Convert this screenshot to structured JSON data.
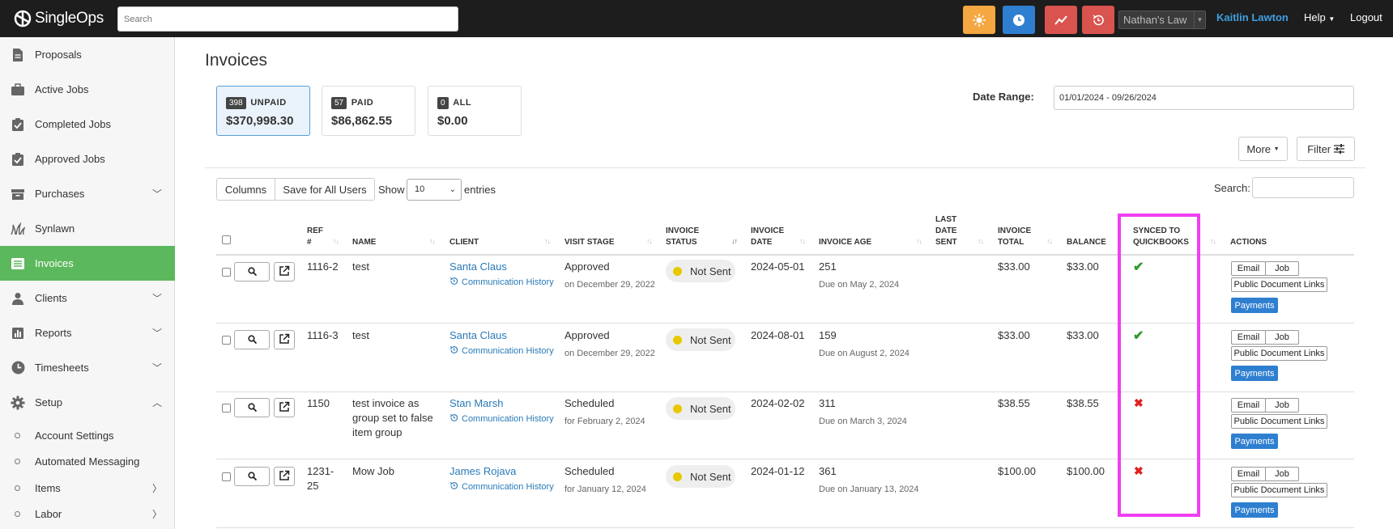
{
  "topbar": {
    "brand": "SingleOps",
    "search_placeholder": "Search",
    "account": "Nathan's Law",
    "user": "Kaitlin Lawton",
    "help": "Help",
    "logout": "Logout",
    "buttons": [
      {
        "icon": "sun-icon",
        "color": "#f5a742"
      },
      {
        "icon": "clock-icon",
        "color": "#2f7fd0"
      },
      {
        "icon": "trend-icon",
        "color": "#d9534f"
      },
      {
        "icon": "history-icon",
        "color": "#d9534f"
      }
    ]
  },
  "sidebar": {
    "items": [
      {
        "label": "Proposals",
        "icon": "document-icon"
      },
      {
        "label": "Active Jobs",
        "icon": "briefcase-icon"
      },
      {
        "label": "Completed Jobs",
        "icon": "clipboard-check-icon"
      },
      {
        "label": "Approved Jobs",
        "icon": "calendar-check-icon"
      },
      {
        "label": "Purchases",
        "icon": "box-icon",
        "expandable": true
      },
      {
        "label": "Synlawn",
        "icon": "grass-icon"
      },
      {
        "label": "Invoices",
        "icon": "list-icon",
        "active": true
      },
      {
        "label": "Clients",
        "icon": "person-icon",
        "expandable": true
      },
      {
        "label": "Reports",
        "icon": "chart-icon",
        "expandable": true
      },
      {
        "label": "Timesheets",
        "icon": "clock-icon",
        "expandable": true
      },
      {
        "label": "Setup",
        "icon": "gear-icon",
        "expanded": true
      }
    ],
    "setup_items": [
      {
        "label": "Account Settings"
      },
      {
        "label": "Automated Messaging"
      },
      {
        "label": "Items",
        "expandable": true
      },
      {
        "label": "Labor",
        "expandable": true
      }
    ],
    "active_color": "#5cb85c"
  },
  "main": {
    "title": "Invoices",
    "tiles": [
      {
        "count": "398",
        "label": "UNPAID",
        "amount": "$370,998.30",
        "active": true
      },
      {
        "count": "57",
        "label": "PAID",
        "amount": "$86,862.55"
      },
      {
        "count": "0",
        "label": "ALL",
        "amount": "$0.00"
      }
    ],
    "date_range_label": "Date Range:",
    "date_range_value": "01/01/2024 - 09/26/2024",
    "more_label": "More",
    "filter_label": "Filter",
    "columns_label": "Columns",
    "save_all_label": "Save for All Users",
    "show_label": "Show",
    "entries_value": "10",
    "entries_label": "entries",
    "search_label": "Search:"
  },
  "table": {
    "headers": {
      "ref": [
        "REF",
        "#"
      ],
      "name": "NAME",
      "client": "CLIENT",
      "visit_stage": "VISIT STAGE",
      "invoice_status": [
        "INVOICE",
        "STATUS"
      ],
      "invoice_date": [
        "INVOICE",
        "DATE"
      ],
      "invoice_age": "INVOICE AGE",
      "last_date_sent": [
        "LAST",
        "DATE",
        "SENT"
      ],
      "invoice_total": [
        "INVOICE",
        "TOTAL"
      ],
      "balance": "BALANCE",
      "synced": [
        "SYNCED TO",
        "QUICKBOOKS"
      ],
      "actions": "ACTIONS"
    },
    "comm_label": "Communication History",
    "email_label": "Email",
    "job_label": "Job",
    "pdl_label": "Public Document Links",
    "payments_label": "Payments",
    "rows": [
      {
        "ref": [
          "1116-2"
        ],
        "name": [
          "test"
        ],
        "client": "Santa Claus",
        "stage": "Approved",
        "stage_sub": "on December 29, 2022",
        "status": "Not Sent",
        "date": "2024-05-01",
        "age": "251",
        "age_sub": "Due on May 2, 2024",
        "total": "$33.00",
        "balance": "$33.00",
        "synced": true
      },
      {
        "ref": [
          "1116-3"
        ],
        "name": [
          "test"
        ],
        "client": "Santa Claus",
        "stage": "Approved",
        "stage_sub": "on December 29, 2022",
        "status": "Not Sent",
        "date": "2024-08-01",
        "age": "159",
        "age_sub": "Due on August 2, 2024",
        "total": "$33.00",
        "balance": "$33.00",
        "synced": true
      },
      {
        "ref": [
          "1150"
        ],
        "name": [
          "test invoice as",
          "group set to false",
          "item group"
        ],
        "client": "Stan Marsh",
        "stage": "Scheduled",
        "stage_sub": "for February 2, 2024",
        "status": "Not Sent",
        "date": "2024-02-02",
        "age": "311",
        "age_sub": "Due on March 3, 2024",
        "total": "$38.55",
        "balance": "$38.55",
        "synced": false
      },
      {
        "ref": [
          "1231-",
          "25"
        ],
        "name": [
          "Mow Job"
        ],
        "client": "James Rojava",
        "stage": "Scheduled",
        "stage_sub": "for January 12, 2024",
        "status": "Not Sent",
        "date": "2024-01-12",
        "age": "361",
        "age_sub": "Due on January 13, 2024",
        "total": "$100.00",
        "balance": "$100.00",
        "synced": false
      }
    ]
  }
}
